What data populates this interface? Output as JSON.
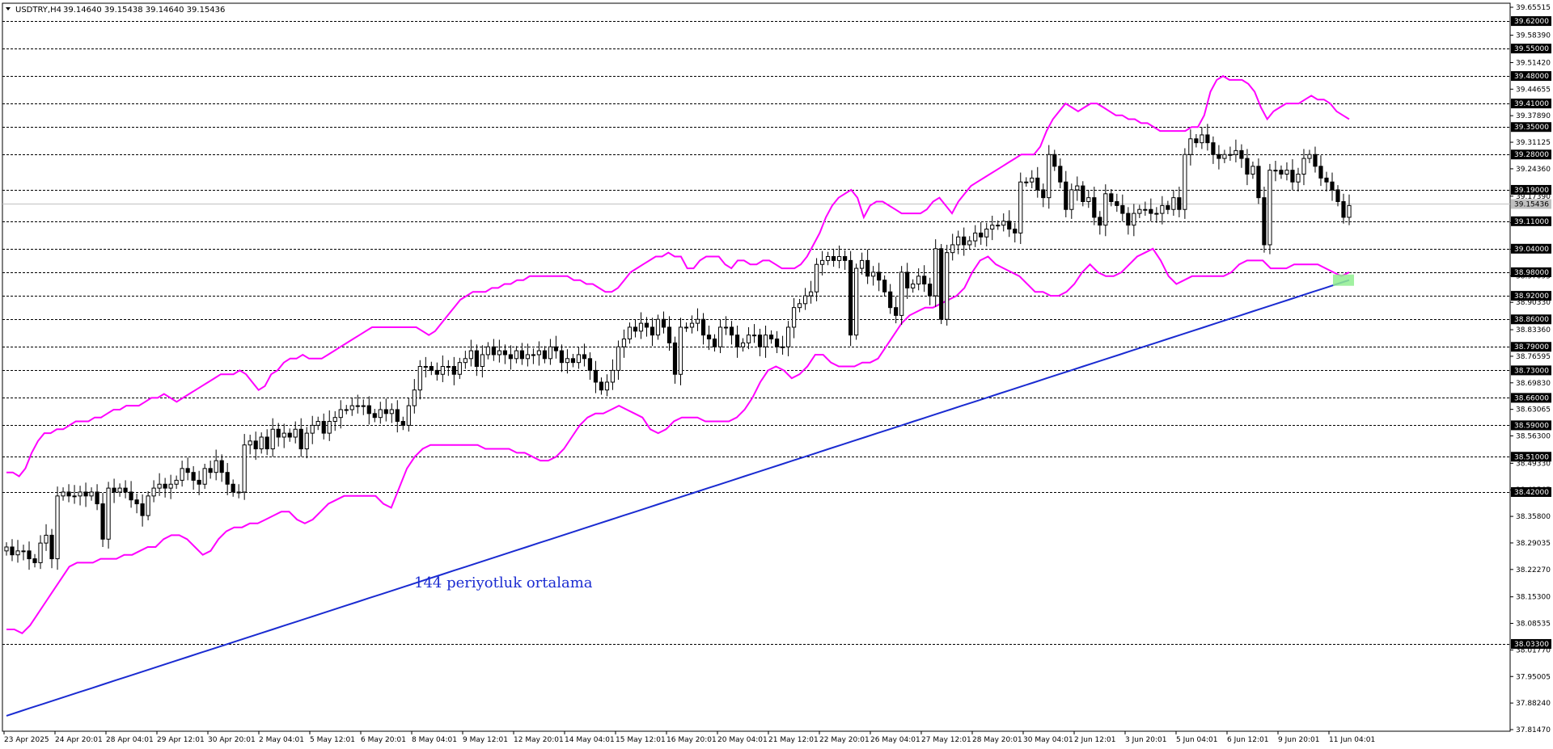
{
  "header": {
    "symbol": "USDTRY,H4",
    "ohlc": "39.14640 39.15438 39.14640 39.15436"
  },
  "annotation": "144 periyotluk ortalama",
  "colors": {
    "candle": "#000000",
    "bollinger": "#ff00ff",
    "ma144": "#1a2bd1",
    "highlight": "#90ee90",
    "grid": "#000000"
  },
  "chart_data": {
    "type": "candlestick",
    "symbol": "USDTRY",
    "timeframe": "H4",
    "ylim": [
      37.8147,
      39.65515
    ],
    "y_ticks": [
      "39.65515",
      "39.58390",
      "39.51420",
      "39.44655",
      "39.37890",
      "39.31125",
      "39.24360",
      "39.17390",
      "39.10625",
      "39.03860",
      "38.97095",
      "38.90330",
      "38.83360",
      "38.76595",
      "38.69830",
      "38.63065",
      "38.56300",
      "38.49330",
      "38.42565",
      "38.35800",
      "38.29035",
      "38.22270",
      "38.15300",
      "38.08535",
      "38.01770",
      "37.95005",
      "37.88240",
      "37.81470"
    ],
    "horizontal_levels": [
      "39.62000",
      "39.55000",
      "39.48000",
      "39.41000",
      "39.35000",
      "39.28000",
      "39.19000",
      "39.11000",
      "39.04000",
      "38.98000",
      "38.92000",
      "38.86000",
      "38.79000",
      "38.73000",
      "38.66000",
      "38.59000",
      "38.51000",
      "38.42000",
      "38.03300"
    ],
    "current_price": "39.15436",
    "x_labels": [
      "23 Apr 2025",
      "24 Apr 20:01",
      "28 Apr 04:01",
      "29 Apr 12:01",
      "30 Apr 20:01",
      "2 May 04:01",
      "5 May 12:01",
      "6 May 20:01",
      "8 May 04:01",
      "9 May 12:01",
      "12 May 20:01",
      "14 May 04:01",
      "15 May 12:01",
      "16 May 20:01",
      "20 May 04:01",
      "21 May 12:01",
      "22 May 20:01",
      "26 May 04:01",
      "27 May 12:01",
      "28 May 20:01",
      "30 May 04:01",
      "2 Jun 12:01",
      "3 Jun 20:01",
      "5 Jun 04:01",
      "6 Jun 12:01",
      "9 Jun 20:01",
      "11 Jun 04:01"
    ],
    "candles_close": [
      38.28,
      38.26,
      38.27,
      38.27,
      38.25,
      38.24,
      38.29,
      38.31,
      38.25,
      38.41,
      38.42,
      38.41,
      38.41,
      38.42,
      38.41,
      38.42,
      38.39,
      38.3,
      38.43,
      38.42,
      38.43,
      38.42,
      38.4,
      38.39,
      38.36,
      38.41,
      38.43,
      38.44,
      38.43,
      38.44,
      38.45,
      38.48,
      38.47,
      38.45,
      38.44,
      38.48,
      38.47,
      38.5,
      38.47,
      38.44,
      38.42,
      38.42,
      38.54,
      38.55,
      38.53,
      38.56,
      38.53,
      38.58,
      38.56,
      38.57,
      38.56,
      38.58,
      38.53,
      38.57,
      38.59,
      38.6,
      38.57,
      38.6,
      38.61,
      38.63,
      38.63,
      38.64,
      38.64,
      38.64,
      38.62,
      38.61,
      38.63,
      38.62,
      38.63,
      38.6,
      38.59,
      38.64,
      38.68,
      38.74,
      38.74,
      38.73,
      38.72,
      38.74,
      38.74,
      38.72,
      38.75,
      38.76,
      38.78,
      38.74,
      38.77,
      38.79,
      38.77,
      38.78,
      38.77,
      38.76,
      38.78,
      38.76,
      38.77,
      38.77,
      38.78,
      38.76,
      38.79,
      38.78,
      38.75,
      38.76,
      38.75,
      38.77,
      38.76,
      38.73,
      38.7,
      38.68,
      38.7,
      38.73,
      38.79,
      38.81,
      38.84,
      38.83,
      38.85,
      38.84,
      38.82,
      38.86,
      38.84,
      38.8,
      38.72,
      38.84,
      38.84,
      38.85,
      38.86,
      38.82,
      38.81,
      38.79,
      38.84,
      38.84,
      38.82,
      38.79,
      38.8,
      38.82,
      38.82,
      38.79,
      38.82,
      38.81,
      38.79,
      38.79,
      38.84,
      38.89,
      38.9,
      38.92,
      38.93,
      39.0,
      39.01,
      39.02,
      39.01,
      39.02,
      39.01,
      38.82,
      38.99,
      39.01,
      38.97,
      38.98,
      38.96,
      38.93,
      38.89,
      38.87,
      38.98,
      38.94,
      38.95,
      38.97,
      38.95,
      38.92,
      39.04,
      38.86,
      39.03,
      39.05,
      39.07,
      39.05,
      39.06,
      39.08,
      39.07,
      39.09,
      39.1,
      39.1,
      39.11,
      39.09,
      39.08,
      39.21,
      39.21,
      39.22,
      39.19,
      39.17,
      39.28,
      39.25,
      39.21,
      39.14,
      39.19,
      39.2,
      39.16,
      39.17,
      39.12,
      39.1,
      39.18,
      39.16,
      39.15,
      39.13,
      39.1,
      39.13,
      39.14,
      39.14,
      39.13,
      39.13,
      39.15,
      39.14,
      39.17,
      39.14,
      39.28,
      39.32,
      39.31,
      39.33,
      39.31,
      39.28,
      39.27,
      39.28,
      39.28,
      39.29,
      39.27,
      39.23,
      39.25,
      39.17,
      39.05,
      39.24,
      39.24,
      39.23,
      39.24,
      39.21,
      39.23,
      39.27,
      39.28,
      39.25,
      39.22,
      39.21,
      39.19,
      39.16,
      39.12,
      39.15
    ],
    "bollinger_upper": [
      38.47,
      38.47,
      38.46,
      38.48,
      38.52,
      38.55,
      38.57,
      38.57,
      38.58,
      38.58,
      38.59,
      38.6,
      38.6,
      38.6,
      38.61,
      38.61,
      38.62,
      38.63,
      38.63,
      38.64,
      38.64,
      38.64,
      38.65,
      38.66,
      38.66,
      38.67,
      38.66,
      38.65,
      38.66,
      38.67,
      38.68,
      38.69,
      38.7,
      38.71,
      38.72,
      38.72,
      38.72,
      38.73,
      38.72,
      38.7,
      38.68,
      38.69,
      38.72,
      38.73,
      38.75,
      38.76,
      38.76,
      38.77,
      38.76,
      38.76,
      38.76,
      38.77,
      38.78,
      38.79,
      38.8,
      38.81,
      38.82,
      38.83,
      38.84,
      38.84,
      38.84,
      38.84,
      38.84,
      38.84,
      38.84,
      38.84,
      38.83,
      38.82,
      38.83,
      38.85,
      38.87,
      38.89,
      38.91,
      38.92,
      38.93,
      38.93,
      38.93,
      38.94,
      38.94,
      38.95,
      38.95,
      38.96,
      38.96,
      38.97,
      38.97,
      38.97,
      38.97,
      38.97,
      38.97,
      38.97,
      38.96,
      38.96,
      38.95,
      38.95,
      38.94,
      38.93,
      38.93,
      38.94,
      38.96,
      38.98,
      38.99,
      39.0,
      39.01,
      39.02,
      39.02,
      39.03,
      39.02,
      39.02,
      38.99,
      38.99,
      39.01,
      39.02,
      39.02,
      39.02,
      39.0,
      38.99,
      39.01,
      39.01,
      39.0,
      39.0,
      39.01,
      39.01,
      39.0,
      38.99,
      38.99,
      38.99,
      39.0,
      39.02,
      39.05,
      39.08,
      39.12,
      39.15,
      39.17,
      39.18,
      39.19,
      39.17,
      39.12,
      39.15,
      39.16,
      39.16,
      39.15,
      39.14,
      39.13,
      39.13,
      39.13,
      39.13,
      39.14,
      39.16,
      39.17,
      39.15,
      39.13,
      39.16,
      39.18,
      39.2,
      39.21,
      39.22,
      39.23,
      39.24,
      39.25,
      39.26,
      39.27,
      39.28,
      39.28,
      39.28,
      39.3,
      39.34,
      39.37,
      39.39,
      39.41,
      39.4,
      39.39,
      39.4,
      39.41,
      39.41,
      39.4,
      39.39,
      39.38,
      39.38,
      39.37,
      39.37,
      39.36,
      39.36,
      39.35,
      39.34,
      39.34,
      39.34,
      39.34,
      39.34,
      39.35,
      39.35,
      39.38,
      39.44,
      39.47,
      39.48,
      39.47,
      39.47,
      39.47,
      39.46,
      39.44,
      39.4,
      39.37,
      39.39,
      39.4,
      39.41,
      39.41,
      39.41,
      39.42,
      39.43,
      39.42,
      39.42,
      39.41,
      39.39,
      39.38,
      39.37
    ],
    "bollinger_lower": [
      38.07,
      38.07,
      38.06,
      38.08,
      38.11,
      38.14,
      38.17,
      38.2,
      38.23,
      38.24,
      38.24,
      38.24,
      38.25,
      38.25,
      38.25,
      38.26,
      38.26,
      38.27,
      38.28,
      38.28,
      38.3,
      38.31,
      38.31,
      38.3,
      38.28,
      38.26,
      38.27,
      38.3,
      38.32,
      38.33,
      38.33,
      38.34,
      38.34,
      38.35,
      38.36,
      38.37,
      38.37,
      38.35,
      38.34,
      38.35,
      38.37,
      38.39,
      38.4,
      38.41,
      38.41,
      38.41,
      38.41,
      38.41,
      38.39,
      38.38,
      38.43,
      38.48,
      38.51,
      38.53,
      38.54,
      38.54,
      38.54,
      38.54,
      38.54,
      38.54,
      38.54,
      38.53,
      38.53,
      38.53,
      38.53,
      38.52,
      38.52,
      38.51,
      38.5,
      38.5,
      38.51,
      38.53,
      38.56,
      38.59,
      38.61,
      38.62,
      38.62,
      38.63,
      38.64,
      38.63,
      38.62,
      38.61,
      38.58,
      38.57,
      38.58,
      38.6,
      38.61,
      38.61,
      38.61,
      38.6,
      38.6,
      38.6,
      38.6,
      38.61,
      38.63,
      38.66,
      38.7,
      38.73,
      38.74,
      38.73,
      38.71,
      38.72,
      38.74,
      38.77,
      38.77,
      38.75,
      38.74,
      38.74,
      38.74,
      38.75,
      38.75,
      38.76,
      38.79,
      38.82,
      38.85,
      38.87,
      38.88,
      38.89,
      38.89,
      38.9,
      38.91,
      38.92,
      38.94,
      38.98,
      39.01,
      39.02,
      39.0,
      38.99,
      38.98,
      38.97,
      38.95,
      38.93,
      38.93,
      38.92,
      38.92,
      38.93,
      38.95,
      38.98,
      39.0,
      38.98,
      38.97,
      38.97,
      38.98,
      39.0,
      39.02,
      39.03,
      39.04,
      39.01,
      38.97,
      38.95,
      38.96,
      38.97,
      38.97,
      38.97,
      38.97,
      38.97,
      38.98,
      39.0,
      39.01,
      39.01,
      39.01,
      38.99,
      38.99,
      38.99,
      39.0,
      39.0,
      39.0,
      39.0,
      38.99,
      38.98,
      38.97,
      38.98
    ],
    "ma144": [
      37.85,
      37.86,
      37.87,
      37.88,
      37.89,
      37.9,
      37.91,
      37.92,
      37.93,
      37.94,
      37.95,
      37.96,
      37.97,
      37.98,
      37.99,
      38.0,
      38.01,
      38.02,
      38.03,
      38.04,
      38.05,
      38.06,
      38.07,
      38.08,
      38.09,
      38.1,
      38.11,
      38.12,
      38.13,
      38.14,
      38.15,
      38.16,
      38.17,
      38.18,
      38.19,
      38.2,
      38.21,
      38.22,
      38.23,
      38.24,
      38.25,
      38.26,
      38.27,
      38.28,
      38.29,
      38.3,
      38.31,
      38.32,
      38.33,
      38.34,
      38.35,
      38.36,
      38.37,
      38.38,
      38.39,
      38.4,
      38.41,
      38.42,
      38.43,
      38.44,
      38.45,
      38.46,
      38.47,
      38.48,
      38.49,
      38.5,
      38.51,
      38.52,
      38.53,
      38.54,
      38.55,
      38.56,
      38.57,
      38.58,
      38.59,
      38.6,
      38.61,
      38.62,
      38.63,
      38.64,
      38.65,
      38.66,
      38.67,
      38.68,
      38.69,
      38.7,
      38.71,
      38.72,
      38.73,
      38.74,
      38.75,
      38.76,
      38.77,
      38.78,
      38.79,
      38.8,
      38.81,
      38.82,
      38.83,
      38.84,
      38.85,
      38.86,
      38.87,
      38.88,
      38.89,
      38.9,
      38.91,
      38.92,
      38.93,
      38.94,
      38.95,
      38.96
    ]
  }
}
